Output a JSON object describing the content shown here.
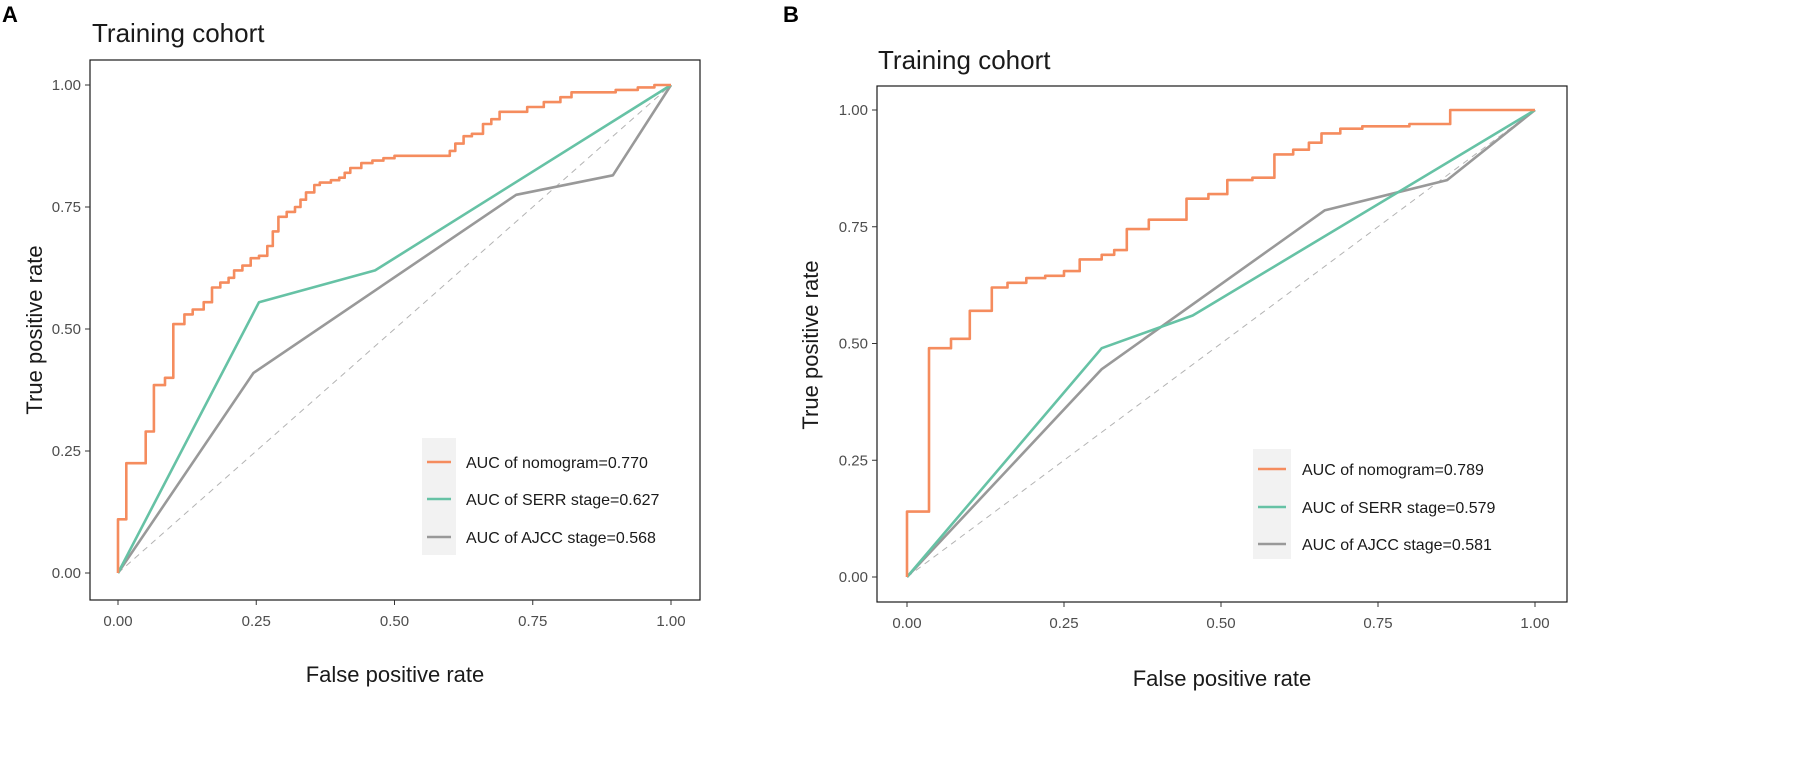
{
  "chart_data": [
    {
      "panel": "A",
      "type": "line",
      "title": "Training cohort",
      "xlabel": "False positive rate",
      "ylabel": "True positive rate",
      "xlim": [
        0,
        1
      ],
      "ylim": [
        0,
        1
      ],
      "xticks": [
        "0.00",
        "0.25",
        "0.50",
        "0.75",
        "1.00"
      ],
      "yticks": [
        "0.00",
        "0.25",
        "0.50",
        "0.75",
        "1.00"
      ],
      "legend_position": "bottom-right",
      "reference_line": "diagonal dashed",
      "series": [
        {
          "name": "AUC of nomogram=0.770",
          "color": "#F58C5E",
          "points": [
            [
              0,
              0
            ],
            [
              0,
              0.11
            ],
            [
              0.015,
              0.11
            ],
            [
              0.015,
              0.225
            ],
            [
              0.05,
              0.225
            ],
            [
              0.05,
              0.29
            ],
            [
              0.065,
              0.29
            ],
            [
              0.065,
              0.385
            ],
            [
              0.085,
              0.385
            ],
            [
              0.085,
              0.4
            ],
            [
              0.1,
              0.4
            ],
            [
              0.1,
              0.51
            ],
            [
              0.12,
              0.51
            ],
            [
              0.12,
              0.53
            ],
            [
              0.135,
              0.53
            ],
            [
              0.135,
              0.54
            ],
            [
              0.155,
              0.54
            ],
            [
              0.155,
              0.555
            ],
            [
              0.17,
              0.555
            ],
            [
              0.17,
              0.585
            ],
            [
              0.185,
              0.585
            ],
            [
              0.185,
              0.595
            ],
            [
              0.2,
              0.595
            ],
            [
              0.2,
              0.605
            ],
            [
              0.21,
              0.605
            ],
            [
              0.21,
              0.62
            ],
            [
              0.225,
              0.62
            ],
            [
              0.225,
              0.63
            ],
            [
              0.24,
              0.63
            ],
            [
              0.24,
              0.645
            ],
            [
              0.255,
              0.645
            ],
            [
              0.255,
              0.65
            ],
            [
              0.27,
              0.65
            ],
            [
              0.27,
              0.67
            ],
            [
              0.28,
              0.67
            ],
            [
              0.28,
              0.7
            ],
            [
              0.29,
              0.7
            ],
            [
              0.29,
              0.73
            ],
            [
              0.305,
              0.73
            ],
            [
              0.305,
              0.74
            ],
            [
              0.32,
              0.74
            ],
            [
              0.32,
              0.75
            ],
            [
              0.33,
              0.75
            ],
            [
              0.33,
              0.765
            ],
            [
              0.34,
              0.765
            ],
            [
              0.34,
              0.78
            ],
            [
              0.355,
              0.78
            ],
            [
              0.355,
              0.795
            ],
            [
              0.365,
              0.795
            ],
            [
              0.365,
              0.8
            ],
            [
              0.385,
              0.8
            ],
            [
              0.385,
              0.805
            ],
            [
              0.4,
              0.805
            ],
            [
              0.4,
              0.81
            ],
            [
              0.41,
              0.81
            ],
            [
              0.41,
              0.82
            ],
            [
              0.42,
              0.82
            ],
            [
              0.42,
              0.83
            ],
            [
              0.44,
              0.83
            ],
            [
              0.44,
              0.84
            ],
            [
              0.46,
              0.84
            ],
            [
              0.46,
              0.845
            ],
            [
              0.48,
              0.845
            ],
            [
              0.48,
              0.85
            ],
            [
              0.5,
              0.85
            ],
            [
              0.5,
              0.855
            ],
            [
              0.6,
              0.855
            ],
            [
              0.6,
              0.865
            ],
            [
              0.61,
              0.865
            ],
            [
              0.61,
              0.88
            ],
            [
              0.625,
              0.88
            ],
            [
              0.625,
              0.895
            ],
            [
              0.64,
              0.895
            ],
            [
              0.64,
              0.9
            ],
            [
              0.66,
              0.9
            ],
            [
              0.66,
              0.92
            ],
            [
              0.675,
              0.92
            ],
            [
              0.675,
              0.93
            ],
            [
              0.69,
              0.93
            ],
            [
              0.69,
              0.945
            ],
            [
              0.74,
              0.945
            ],
            [
              0.74,
              0.955
            ],
            [
              0.77,
              0.955
            ],
            [
              0.77,
              0.965
            ],
            [
              0.8,
              0.965
            ],
            [
              0.8,
              0.975
            ],
            [
              0.82,
              0.975
            ],
            [
              0.82,
              0.985
            ],
            [
              0.9,
              0.985
            ],
            [
              0.9,
              0.99
            ],
            [
              0.94,
              0.99
            ],
            [
              0.94,
              0.995
            ],
            [
              0.97,
              0.995
            ],
            [
              0.97,
              1
            ],
            [
              1,
              1
            ]
          ]
        },
        {
          "name": "AUC of SERR stage=0.627",
          "color": "#66C2A5",
          "points": [
            [
              0,
              0
            ],
            [
              0.255,
              0.555
            ],
            [
              0.465,
              0.62
            ],
            [
              1,
              1
            ]
          ]
        },
        {
          "name": "AUC of AJCC stage=0.568",
          "color": "#999999",
          "points": [
            [
              0,
              0
            ],
            [
              0.245,
              0.41
            ],
            [
              0.72,
              0.775
            ],
            [
              0.895,
              0.815
            ],
            [
              1,
              1
            ]
          ]
        }
      ]
    },
    {
      "panel": "B",
      "type": "line",
      "title": "Training cohort",
      "xlabel": "False positive rate",
      "ylabel": "True positive rate",
      "xlim": [
        0,
        1
      ],
      "ylim": [
        0,
        1
      ],
      "xticks": [
        "0.00",
        "0.25",
        "0.50",
        "0.75",
        "1.00"
      ],
      "yticks": [
        "0.00",
        "0.25",
        "0.50",
        "0.75",
        "1.00"
      ],
      "legend_position": "bottom-right",
      "reference_line": "diagonal dashed",
      "series": [
        {
          "name": "AUC of nomogram=0.789",
          "color": "#F58C5E",
          "points": [
            [
              0,
              0
            ],
            [
              0,
              0.14
            ],
            [
              0.035,
              0.14
            ],
            [
              0.035,
              0.49
            ],
            [
              0.07,
              0.49
            ],
            [
              0.07,
              0.51
            ],
            [
              0.1,
              0.51
            ],
            [
              0.1,
              0.57
            ],
            [
              0.135,
              0.57
            ],
            [
              0.135,
              0.62
            ],
            [
              0.16,
              0.62
            ],
            [
              0.16,
              0.63
            ],
            [
              0.19,
              0.63
            ],
            [
              0.19,
              0.64
            ],
            [
              0.22,
              0.64
            ],
            [
              0.22,
              0.645
            ],
            [
              0.25,
              0.645
            ],
            [
              0.25,
              0.655
            ],
            [
              0.275,
              0.655
            ],
            [
              0.275,
              0.68
            ],
            [
              0.31,
              0.68
            ],
            [
              0.31,
              0.69
            ],
            [
              0.33,
              0.69
            ],
            [
              0.33,
              0.7
            ],
            [
              0.35,
              0.7
            ],
            [
              0.35,
              0.745
            ],
            [
              0.385,
              0.745
            ],
            [
              0.385,
              0.765
            ],
            [
              0.445,
              0.765
            ],
            [
              0.445,
              0.81
            ],
            [
              0.48,
              0.81
            ],
            [
              0.48,
              0.82
            ],
            [
              0.51,
              0.82
            ],
            [
              0.51,
              0.85
            ],
            [
              0.55,
              0.85
            ],
            [
              0.55,
              0.855
            ],
            [
              0.585,
              0.855
            ],
            [
              0.585,
              0.905
            ],
            [
              0.615,
              0.905
            ],
            [
              0.615,
              0.915
            ],
            [
              0.64,
              0.915
            ],
            [
              0.64,
              0.93
            ],
            [
              0.66,
              0.93
            ],
            [
              0.66,
              0.95
            ],
            [
              0.69,
              0.95
            ],
            [
              0.69,
              0.96
            ],
            [
              0.725,
              0.96
            ],
            [
              0.725,
              0.965
            ],
            [
              0.8,
              0.965
            ],
            [
              0.8,
              0.97
            ],
            [
              0.865,
              0.97
            ],
            [
              0.865,
              1
            ],
            [
              1,
              1
            ]
          ]
        },
        {
          "name": "AUC of SERR stage=0.579",
          "color": "#66C2A5",
          "points": [
            [
              0,
              0
            ],
            [
              0.31,
              0.49
            ],
            [
              0.455,
              0.56
            ],
            [
              1,
              1
            ]
          ]
        },
        {
          "name": "AUC of AJCC stage=0.581",
          "color": "#999999",
          "points": [
            [
              0,
              0
            ],
            [
              0.31,
              0.445
            ],
            [
              0.665,
              0.785
            ],
            [
              0.86,
              0.85
            ],
            [
              1,
              1
            ]
          ]
        }
      ]
    }
  ]
}
